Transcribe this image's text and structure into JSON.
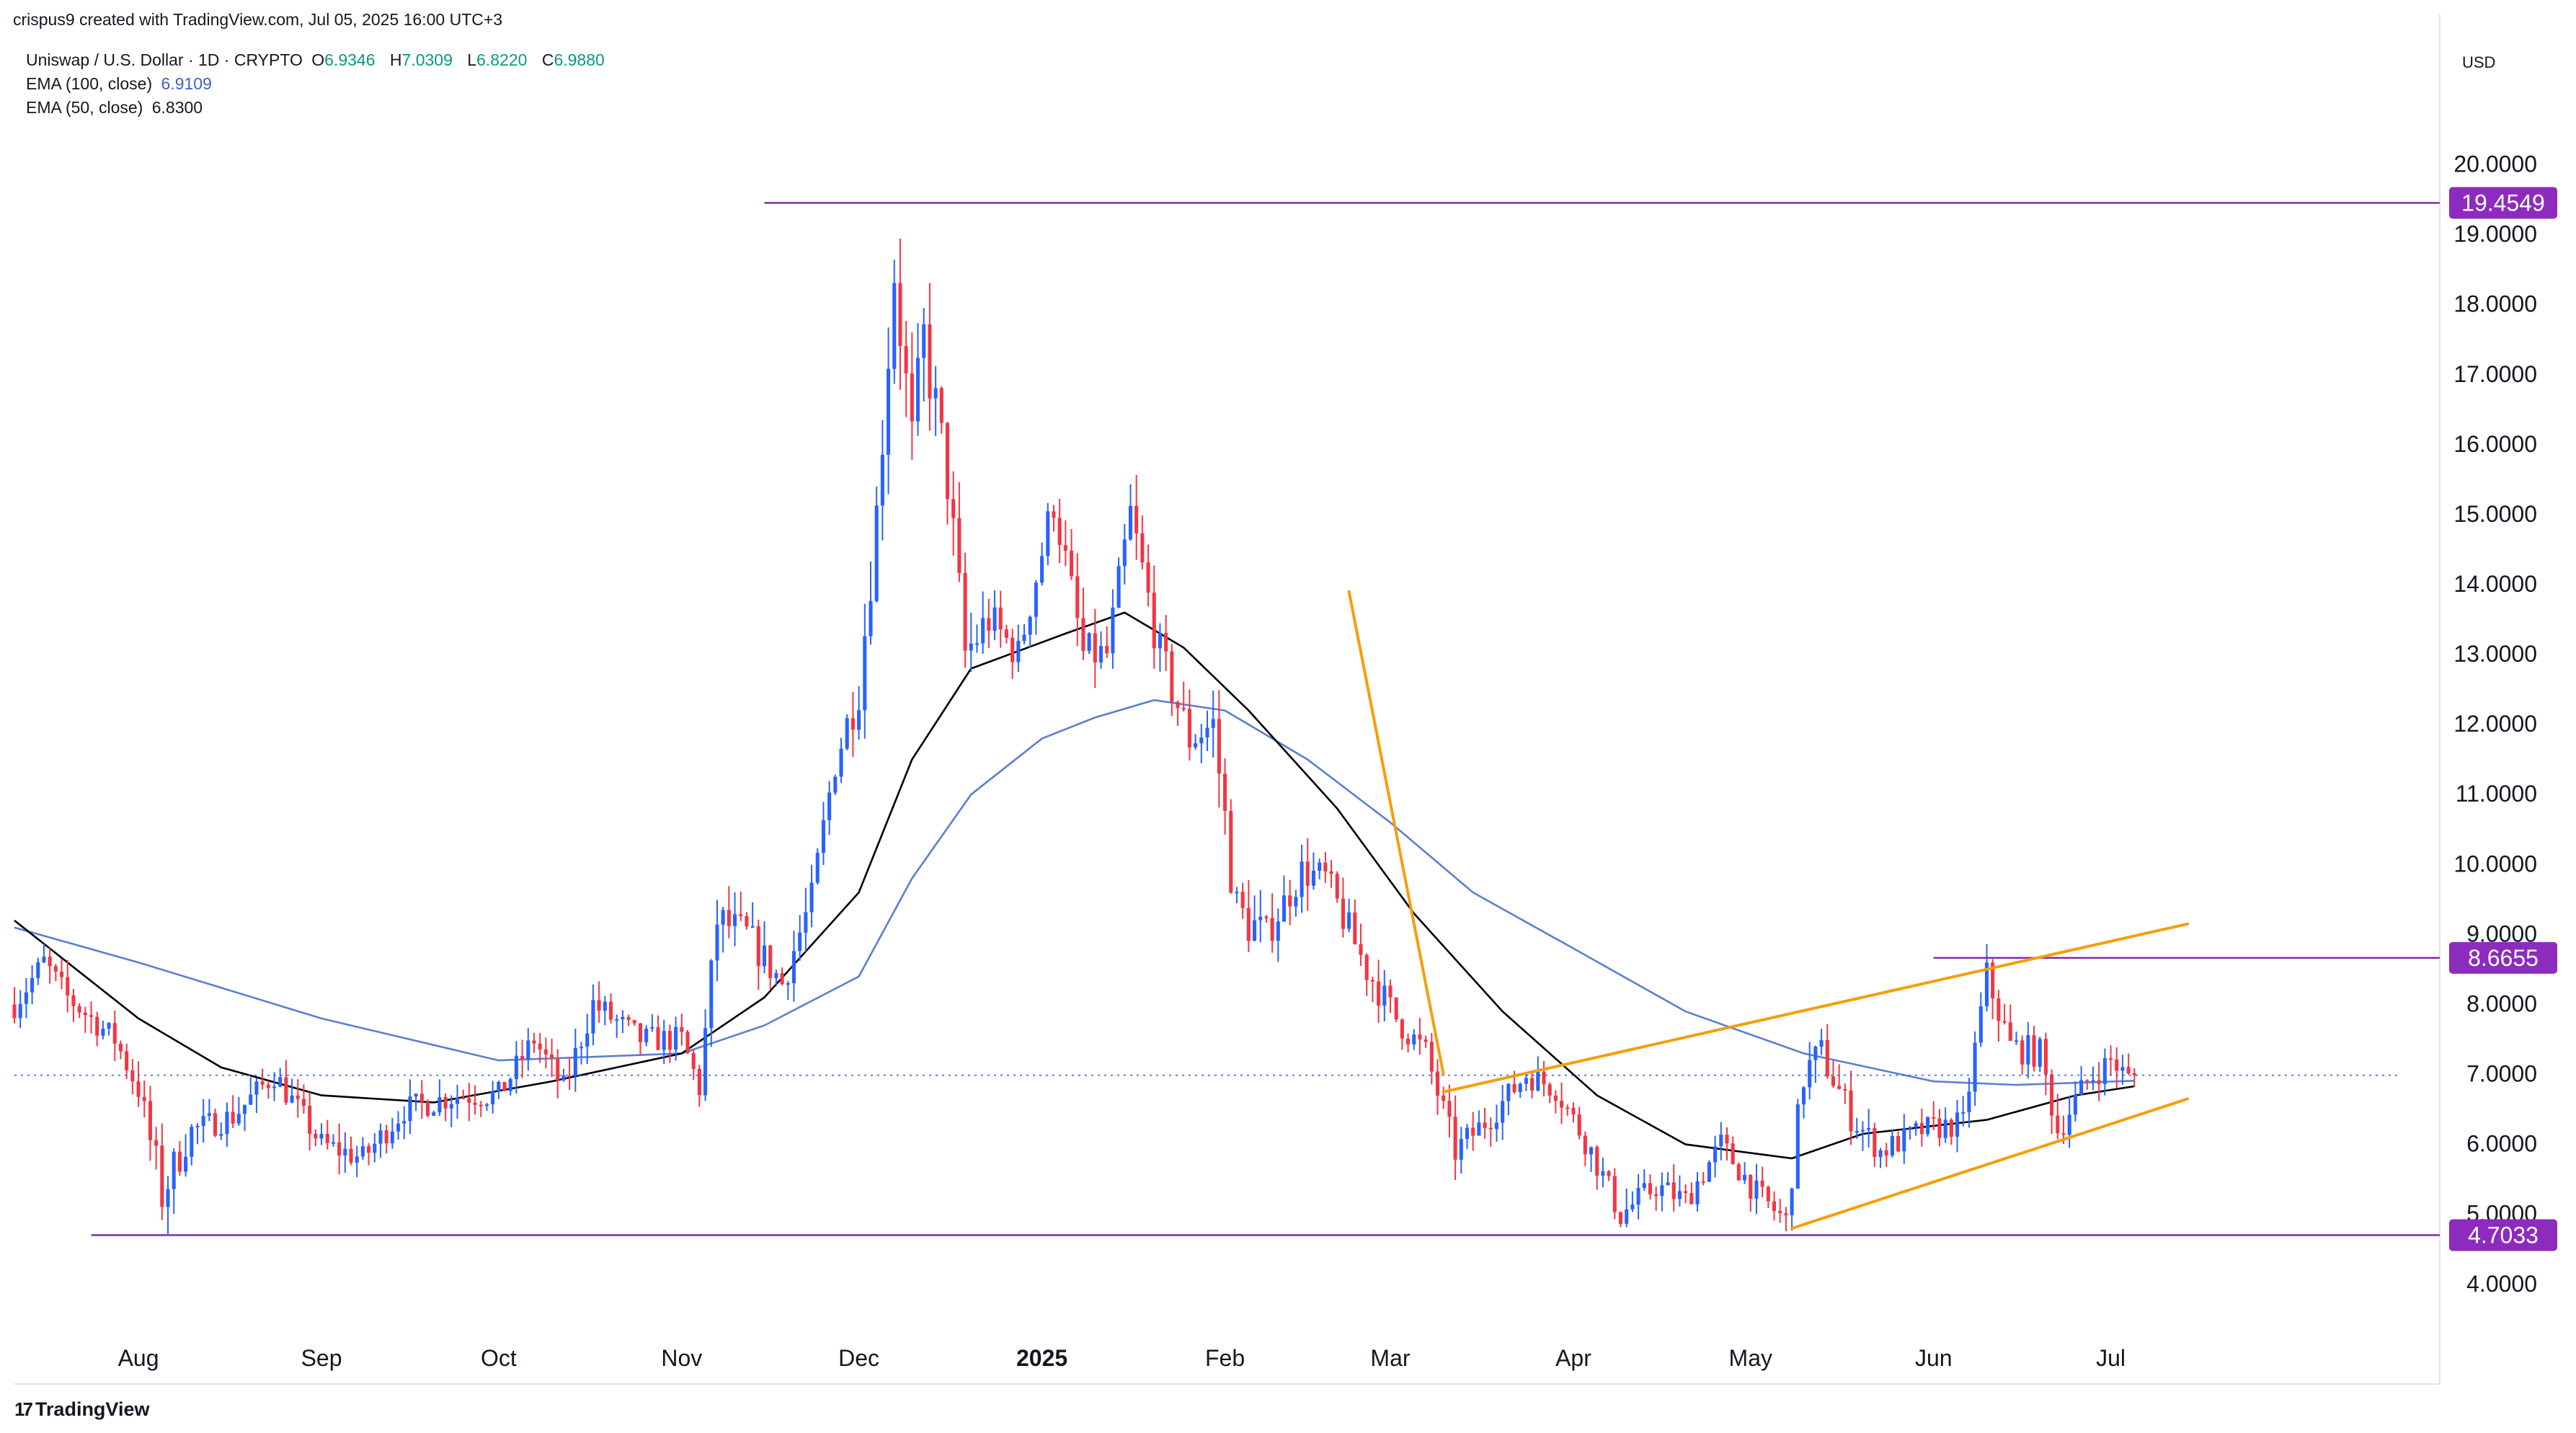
{
  "header": {
    "credit": "crispus9 created with TradingView.com, Jul 05, 2025 16:00 UTC+3",
    "symbol": "Uniswap / U.S. Dollar · 1D · CRYPTO",
    "ohlc": {
      "o_label": "O",
      "o": "6.9346",
      "h_label": "H",
      "h": "7.0309",
      "l_label": "L",
      "l": "6.8220",
      "c_label": "C",
      "c": "6.9880"
    },
    "ema100": {
      "label": "EMA (100, close)",
      "value": "6.9109"
    },
    "ema50": {
      "label": "EMA (50, close)",
      "value": "6.8300"
    }
  },
  "currency": "USD",
  "branding": {
    "logo_text": "TradingView",
    "logo_mark": "17"
  },
  "colors": {
    "up": "#089981",
    "up_candle": "#2962ff",
    "down": "#f23645",
    "ema100": "#5b7fd3",
    "ema50": "#000000",
    "levels": "#7b2ea8",
    "trend": "#f59e0b",
    "label_bg": "#8e2bbf",
    "last_price_line": "#2962ff"
  },
  "chart_data": {
    "type": "candlestick",
    "ylim": [
      3.4,
      20.5
    ],
    "yticks": [
      "4.0000",
      "5.0000",
      "6.0000",
      "7.0000",
      "8.0000",
      "9.0000",
      "10.0000",
      "11.0000",
      "12.0000",
      "13.0000",
      "14.0000",
      "15.0000",
      "16.0000",
      "17.0000",
      "18.0000",
      "19.0000",
      "20.0000"
    ],
    "x_start": "2024-07-11",
    "x_end": "2025-08-19",
    "month_labels": [
      {
        "date": "2024-08-01",
        "label": "Aug",
        "bold": false
      },
      {
        "date": "2024-09-01",
        "label": "Sep",
        "bold": false
      },
      {
        "date": "2024-10-01",
        "label": "Oct",
        "bold": false
      },
      {
        "date": "2024-11-01",
        "label": "Nov",
        "bold": false
      },
      {
        "date": "2024-12-01",
        "label": "Dec",
        "bold": false
      },
      {
        "date": "2025-01-01",
        "label": "2025",
        "bold": true
      },
      {
        "date": "2025-02-01",
        "label": "Feb",
        "bold": false
      },
      {
        "date": "2025-03-01",
        "label": "Mar",
        "bold": false
      },
      {
        "date": "2025-04-01",
        "label": "Apr",
        "bold": false
      },
      {
        "date": "2025-05-01",
        "label": "May",
        "bold": false
      },
      {
        "date": "2025-06-01",
        "label": "Jun",
        "bold": false
      },
      {
        "date": "2025-07-01",
        "label": "Jul",
        "bold": false
      }
    ],
    "horizontal_levels": [
      {
        "label": "19.4549",
        "value": 19.4549,
        "from": "2024-11-15"
      },
      {
        "label": "8.6655",
        "value": 8.6655,
        "from": "2025-06-01"
      },
      {
        "label": "4.7033",
        "value": 4.7033,
        "from": "2024-07-24"
      }
    ],
    "trend_lines": [
      {
        "from": [
          "2025-02-22",
          13.9
        ],
        "to": [
          "2025-03-10",
          7.0
        ]
      },
      {
        "from": [
          "2025-03-10",
          6.75
        ],
        "to": [
          "2025-07-14",
          9.15
        ]
      },
      {
        "from": [
          "2025-05-08",
          4.8
        ],
        "to": [
          "2025-07-14",
          6.65
        ]
      }
    ],
    "last_price": 6.988,
    "series": [
      {
        "name": "Uniswap / U.S. Dollar",
        "kind": "ohlc",
        "anchors": [
          [
            "2024-07-11",
            8.0,
            0.3
          ],
          [
            "2024-07-16",
            8.6,
            0.3
          ],
          [
            "2024-07-20",
            8.1,
            0.3
          ],
          [
            "2024-07-28",
            7.5,
            0.3
          ],
          [
            "2024-08-01",
            6.8,
            0.35
          ],
          [
            "2024-08-05",
            5.3,
            0.6
          ],
          [
            "2024-08-10",
            6.2,
            0.3
          ],
          [
            "2024-08-17",
            6.4,
            0.3
          ],
          [
            "2024-08-24",
            7.0,
            0.3
          ],
          [
            "2024-09-01",
            6.0,
            0.3
          ],
          [
            "2024-09-08",
            5.8,
            0.3
          ],
          [
            "2024-09-15",
            6.5,
            0.3
          ],
          [
            "2024-09-24",
            6.7,
            0.3
          ],
          [
            "2024-10-01",
            6.7,
            0.3
          ],
          [
            "2024-10-07",
            7.5,
            0.3
          ],
          [
            "2024-10-12",
            6.8,
            0.3
          ],
          [
            "2024-10-17",
            8.0,
            0.35
          ],
          [
            "2024-10-25",
            7.5,
            0.3
          ],
          [
            "2024-11-01",
            7.5,
            0.3
          ],
          [
            "2024-11-04",
            6.8,
            0.3
          ],
          [
            "2024-11-07",
            9.2,
            0.5
          ],
          [
            "2024-11-12",
            9.0,
            0.4
          ],
          [
            "2024-11-18",
            8.3,
            0.4
          ],
          [
            "2024-11-23",
            9.5,
            0.4
          ],
          [
            "2024-11-27",
            11.5,
            0.5
          ],
          [
            "2024-12-01",
            12.5,
            0.5
          ],
          [
            "2024-12-04",
            15.0,
            0.7
          ],
          [
            "2024-12-07",
            18.5,
            0.8
          ],
          [
            "2024-12-10",
            16.0,
            0.8
          ],
          [
            "2024-12-12",
            17.5,
            0.8
          ],
          [
            "2024-12-16",
            15.5,
            0.7
          ],
          [
            "2024-12-19",
            13.0,
            0.7
          ],
          [
            "2024-12-23",
            13.5,
            0.5
          ],
          [
            "2024-12-28",
            13.0,
            0.4
          ],
          [
            "2025-01-03",
            15.2,
            0.5
          ],
          [
            "2025-01-08",
            13.0,
            0.5
          ],
          [
            "2025-01-12",
            13.0,
            0.4
          ],
          [
            "2025-01-16",
            15.0,
            0.5
          ],
          [
            "2025-01-21",
            13.0,
            0.5
          ],
          [
            "2025-01-26",
            11.8,
            0.5
          ],
          [
            "2025-01-30",
            12.0,
            0.5
          ],
          [
            "2025-02-03",
            9.3,
            0.7
          ],
          [
            "2025-02-08",
            9.0,
            0.4
          ],
          [
            "2025-02-14",
            9.9,
            0.4
          ],
          [
            "2025-02-18",
            9.8,
            0.4
          ],
          [
            "2025-02-25",
            8.5,
            0.4
          ],
          [
            "2025-03-02",
            7.8,
            0.35
          ],
          [
            "2025-03-07",
            7.3,
            0.35
          ],
          [
            "2025-03-12",
            5.9,
            0.35
          ],
          [
            "2025-03-18",
            6.4,
            0.3
          ],
          [
            "2025-03-24",
            7.0,
            0.3
          ],
          [
            "2025-03-29",
            6.8,
            0.3
          ],
          [
            "2025-04-04",
            5.9,
            0.3
          ],
          [
            "2025-04-09",
            5.0,
            0.35
          ],
          [
            "2025-04-15",
            5.4,
            0.3
          ],
          [
            "2025-04-20",
            5.2,
            0.3
          ],
          [
            "2025-04-26",
            6.0,
            0.3
          ],
          [
            "2025-05-02",
            5.3,
            0.3
          ],
          [
            "2025-05-07",
            4.9,
            0.3
          ],
          [
            "2025-05-10",
            7.0,
            0.5
          ],
          [
            "2025-05-13",
            7.3,
            0.4
          ],
          [
            "2025-05-18",
            6.4,
            0.35
          ],
          [
            "2025-05-23",
            5.9,
            0.3
          ],
          [
            "2025-05-30",
            6.2,
            0.3
          ],
          [
            "2025-06-06",
            6.3,
            0.3
          ],
          [
            "2025-06-10",
            8.4,
            0.4
          ],
          [
            "2025-06-14",
            7.4,
            0.35
          ],
          [
            "2025-06-19",
            7.3,
            0.35
          ],
          [
            "2025-06-22",
            6.2,
            0.35
          ],
          [
            "2025-06-27",
            6.9,
            0.3
          ],
          [
            "2025-07-01",
            7.2,
            0.3
          ],
          [
            "2025-07-04",
            6.95,
            0.25
          ],
          [
            "2025-07-05",
            6.988,
            0.2
          ]
        ]
      },
      {
        "name": "EMA (100, close)",
        "kind": "line",
        "points": [
          [
            "2024-07-11",
            9.1
          ],
          [
            "2024-08-01",
            8.6
          ],
          [
            "2024-09-01",
            7.8
          ],
          [
            "2024-10-01",
            7.2
          ],
          [
            "2024-11-01",
            7.3
          ],
          [
            "2024-11-15",
            7.7
          ],
          [
            "2024-12-01",
            8.4
          ],
          [
            "2024-12-10",
            9.8
          ],
          [
            "2024-12-20",
            11.0
          ],
          [
            "2025-01-01",
            11.8
          ],
          [
            "2025-01-10",
            12.1
          ],
          [
            "2025-01-20",
            12.35
          ],
          [
            "2025-02-01",
            12.2
          ],
          [
            "2025-02-15",
            11.5
          ],
          [
            "2025-03-01",
            10.6
          ],
          [
            "2025-03-15",
            9.6
          ],
          [
            "2025-04-01",
            8.8
          ],
          [
            "2025-04-20",
            7.9
          ],
          [
            "2025-05-10",
            7.3
          ],
          [
            "2025-06-01",
            6.9
          ],
          [
            "2025-06-15",
            6.85
          ],
          [
            "2025-07-05",
            6.91
          ]
        ]
      },
      {
        "name": "EMA (50, close)",
        "kind": "line",
        "points": [
          [
            "2024-07-11",
            9.2
          ],
          [
            "2024-08-01",
            7.8
          ],
          [
            "2024-08-15",
            7.1
          ],
          [
            "2024-09-01",
            6.7
          ],
          [
            "2024-09-20",
            6.6
          ],
          [
            "2024-10-10",
            6.9
          ],
          [
            "2024-11-01",
            7.3
          ],
          [
            "2024-11-15",
            8.1
          ],
          [
            "2024-12-01",
            9.6
          ],
          [
            "2024-12-10",
            11.5
          ],
          [
            "2024-12-20",
            12.8
          ],
          [
            "2025-01-05",
            13.3
          ],
          [
            "2025-01-15",
            13.6
          ],
          [
            "2025-01-25",
            13.1
          ],
          [
            "2025-02-05",
            12.2
          ],
          [
            "2025-02-20",
            10.8
          ],
          [
            "2025-03-05",
            9.3
          ],
          [
            "2025-03-20",
            7.9
          ],
          [
            "2025-04-05",
            6.7
          ],
          [
            "2025-04-20",
            6.0
          ],
          [
            "2025-05-08",
            5.8
          ],
          [
            "2025-05-20",
            6.15
          ],
          [
            "2025-06-10",
            6.35
          ],
          [
            "2025-06-25",
            6.7
          ],
          [
            "2025-07-05",
            6.83
          ]
        ]
      }
    ]
  }
}
